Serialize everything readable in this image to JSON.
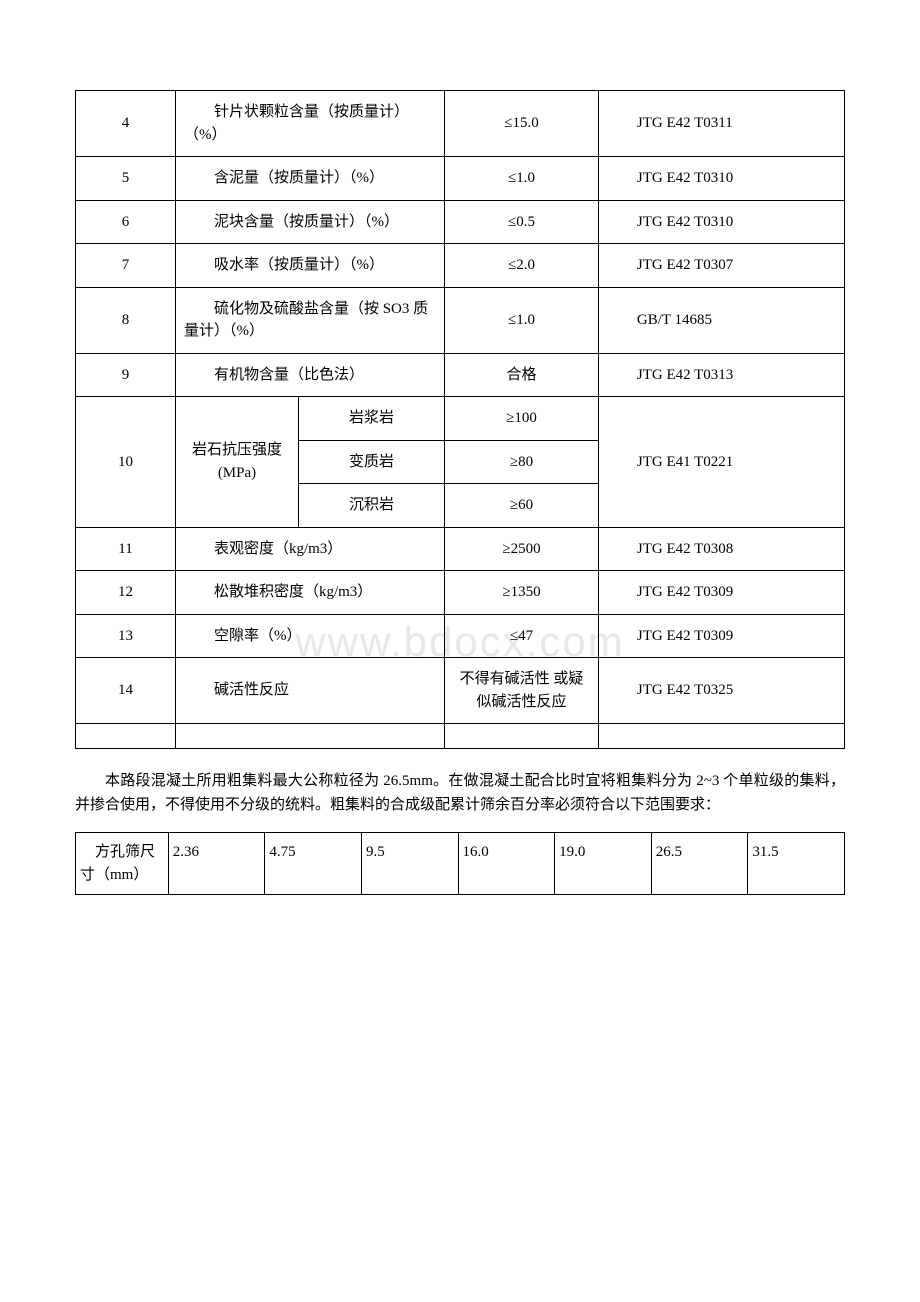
{
  "watermark": "www.bdocx.com",
  "table1": {
    "rows": [
      {
        "num": "4",
        "item": "针片状颗粒含量（按质量计）（%）",
        "value": "≤15.0",
        "method": "JTG E42 T0311"
      },
      {
        "num": "5",
        "item": "含泥量（按质量计）（%）",
        "value": "≤1.0",
        "method": "JTG E42 T0310"
      },
      {
        "num": "6",
        "item": "泥块含量（按质量计）（%）",
        "value": "≤0.5",
        "method": "JTG E42 T0310"
      },
      {
        "num": "7",
        "item": "吸水率（按质量计）（%）",
        "value": "≤2.0",
        "method": "JTG E42 T0307"
      },
      {
        "num": "8",
        "item": "硫化物及硫酸盐含量（按 SO3 质量计）（%）",
        "value": "≤1.0",
        "method": "GB/T 14685"
      },
      {
        "num": "9",
        "item": "有机物含量（比色法）",
        "value": "合格",
        "method": "JTG E42 T0313"
      }
    ],
    "row10": {
      "num": "10",
      "item_main": "岩石抗压强度(MPa)",
      "subs": [
        {
          "name": "岩浆岩",
          "value": "≥100"
        },
        {
          "name": "变质岩",
          "value": "≥80"
        },
        {
          "name": "沉积岩",
          "value": "≥60"
        }
      ],
      "method": "JTG E41 T0221"
    },
    "rows_after": [
      {
        "num": "11",
        "item": "表观密度（kg/m3）",
        "value": "≥2500",
        "method": "JTG E42 T0308"
      },
      {
        "num": "12",
        "item": "松散堆积密度（kg/m3）",
        "value": "≥1350",
        "method": "JTG E42 T0309"
      },
      {
        "num": "13",
        "item": "空隙率（%）",
        "value": "≤47",
        "method": "JTG E42 T0309"
      },
      {
        "num": "14",
        "item": "碱活性反应",
        "value": "不得有碱活性 或疑似碱活性反应",
        "method": "JTG E42 T0325"
      }
    ]
  },
  "paragraph": "本路段混凝土所用粗集料最大公称粒径为 26.5mm。在做混凝土配合比时宜将粗集料分为 2~3 个单粒级的集料，并掺合使用，不得使用不分级的统料。粗集料的合成级配累计筛余百分率必须符合以下范围要求：",
  "table2": {
    "header": "方孔筛尺寸（mm）",
    "cells": [
      "2.36",
      "4.75",
      "9.5",
      "16.0",
      "19.0",
      "26.5",
      "31.5"
    ]
  }
}
